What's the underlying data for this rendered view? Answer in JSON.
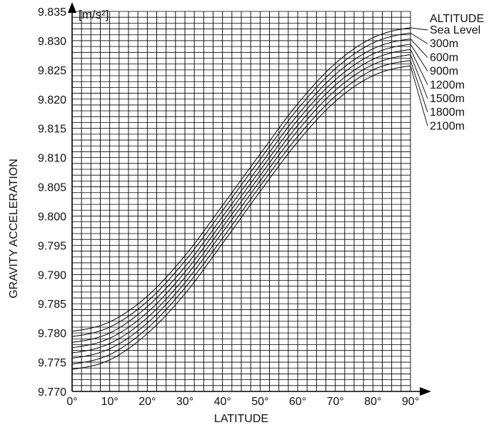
{
  "chart_data": {
    "type": "line",
    "title": "",
    "xlabel": "LATITUDE",
    "ylabel": "GRAVITY ACCELERATION",
    "y_unit": "[m/s²]",
    "xlim": [
      0,
      90
    ],
    "ylim": [
      9.77,
      9.835
    ],
    "grid": true,
    "legend_title": "ALTITUDE",
    "legend_position": "top-right",
    "x_ticks": [
      "0°",
      "10°",
      "20°",
      "30°",
      "40°",
      "50°",
      "60°",
      "70°",
      "80°",
      "90°"
    ],
    "y_ticks": [
      "9.770",
      "9.775",
      "9.780",
      "9.785",
      "9.790",
      "9.795",
      "9.800",
      "9.805",
      "9.810",
      "9.815",
      "9.820",
      "9.825",
      "9.830",
      "9.835"
    ],
    "x": [
      0,
      10,
      20,
      30,
      40,
      50,
      60,
      70,
      80,
      90
    ],
    "series": [
      {
        "name": "Sea Level",
        "values": [
          9.7803,
          9.7819,
          9.7863,
          9.7932,
          9.8018,
          9.8106,
          9.8192,
          9.8261,
          9.8305,
          9.8322
        ]
      },
      {
        "name": "300m",
        "values": [
          9.7794,
          9.781,
          9.7854,
          9.7923,
          9.8009,
          9.8097,
          9.8183,
          9.8252,
          9.8296,
          9.8313
        ]
      },
      {
        "name": "600m",
        "values": [
          9.7784,
          9.78,
          9.7845,
          9.7913,
          9.7999,
          9.8087,
          9.8173,
          9.8242,
          9.8286,
          9.8303
        ]
      },
      {
        "name": "900m",
        "values": [
          9.7775,
          9.7791,
          9.7835,
          9.7904,
          9.799,
          9.8078,
          9.8164,
          9.8233,
          9.8277,
          9.8294
        ]
      },
      {
        "name": "1200m",
        "values": [
          9.7766,
          9.7782,
          9.7826,
          9.7895,
          9.7981,
          9.8069,
          9.8155,
          9.8224,
          9.8268,
          9.8285
        ]
      },
      {
        "name": "1500m",
        "values": [
          9.7757,
          9.7773,
          9.7817,
          9.7886,
          9.7972,
          9.806,
          9.8146,
          9.8215,
          9.8259,
          9.8276
        ]
      },
      {
        "name": "1800m",
        "values": [
          9.7747,
          9.7763,
          9.7808,
          9.7877,
          9.7962,
          9.8051,
          9.8136,
          9.8205,
          9.825,
          9.8266
        ]
      },
      {
        "name": "2100m",
        "values": [
          9.7738,
          9.7754,
          9.7799,
          9.7867,
          9.7953,
          9.8042,
          9.8127,
          9.8196,
          9.824,
          9.8257
        ]
      }
    ]
  }
}
